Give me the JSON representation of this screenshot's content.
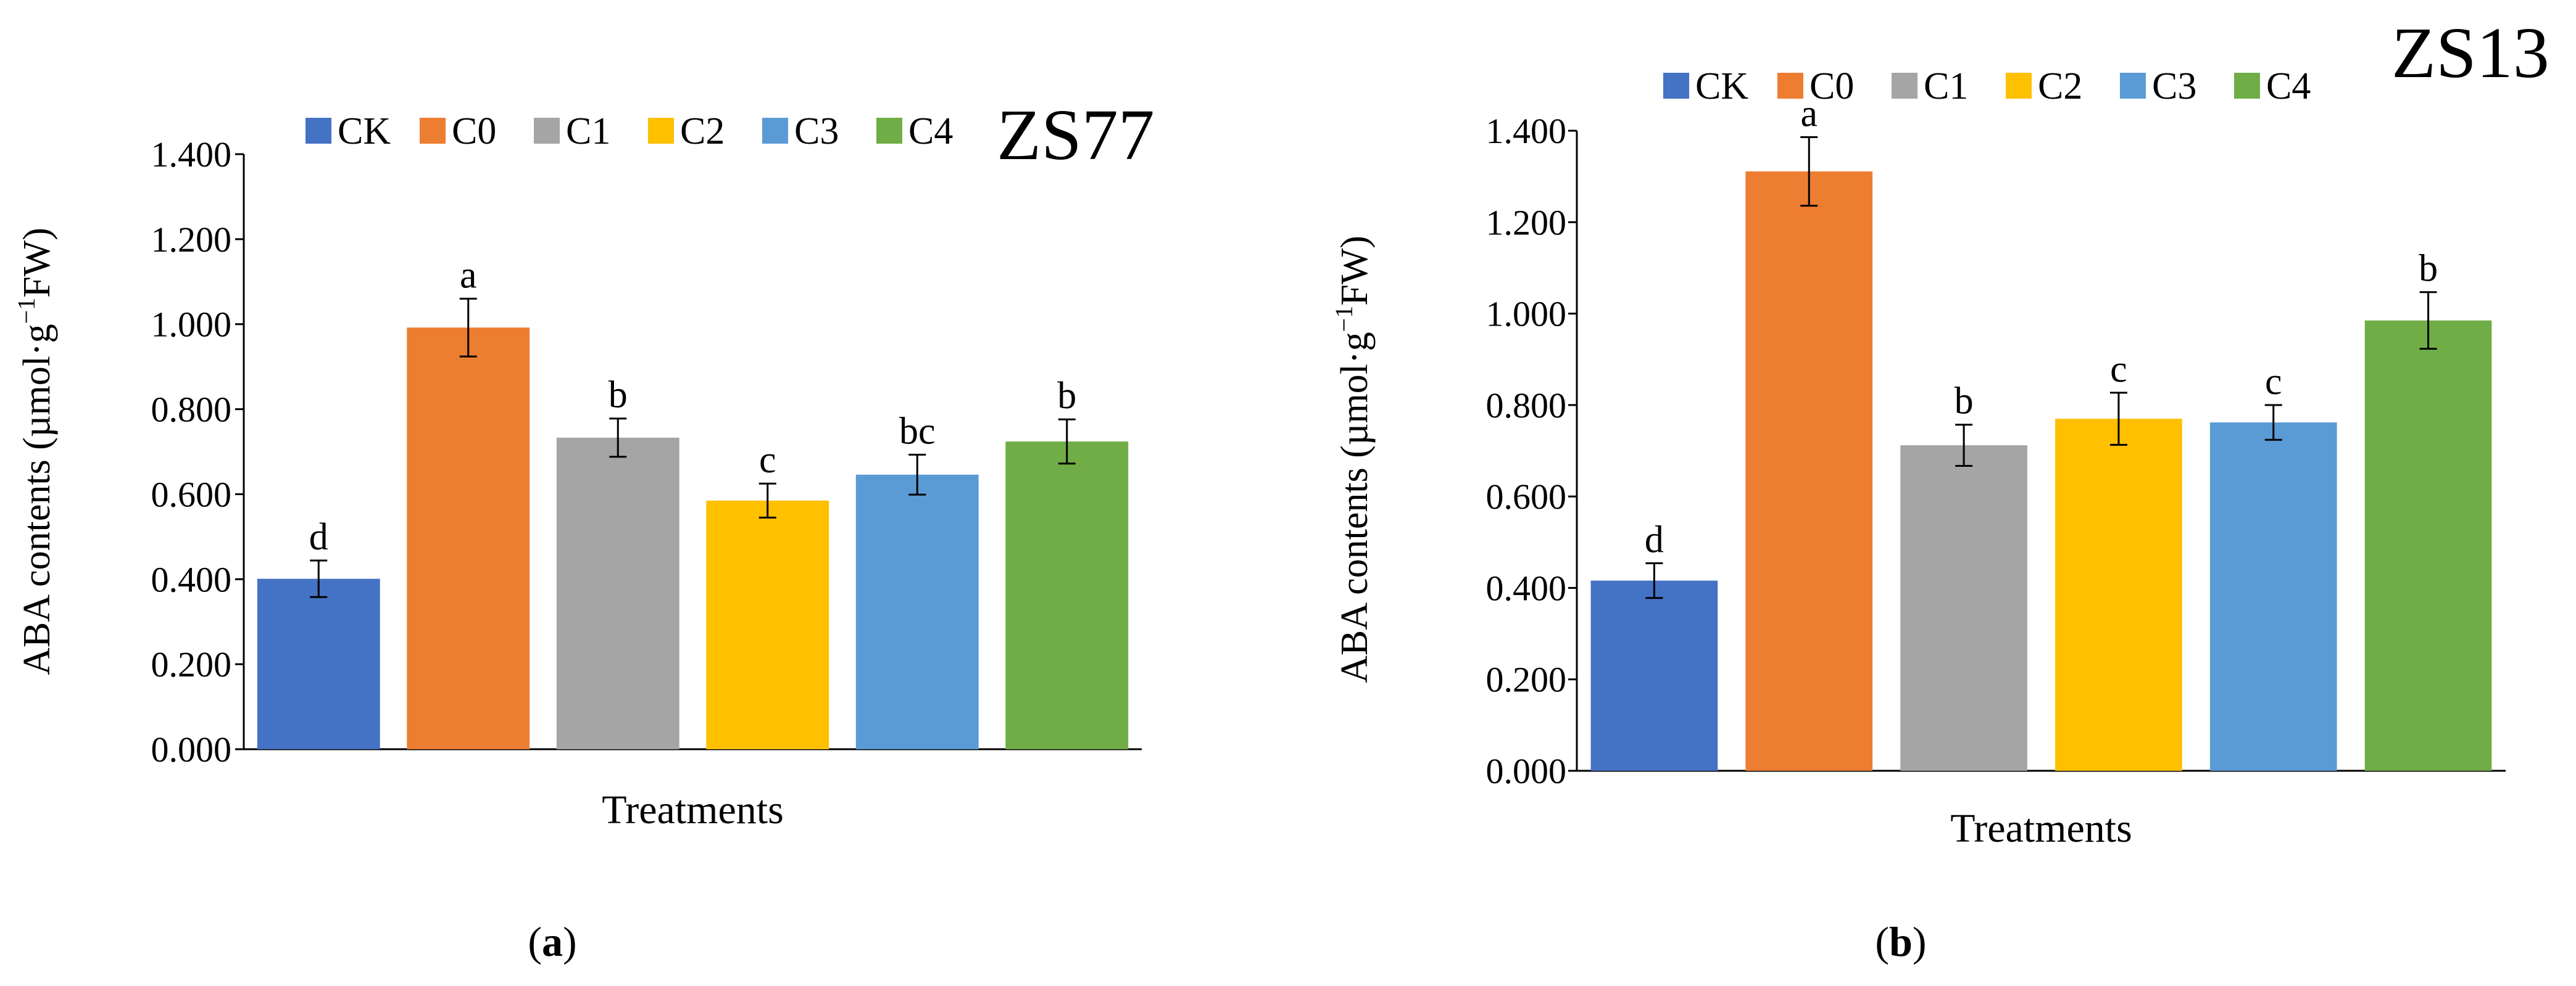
{
  "chart_data": [
    {
      "type": "bar",
      "panel": "a",
      "title": "ZS77",
      "categories": [
        "CK",
        "C0",
        "C1",
        "C2",
        "C3",
        "C4"
      ],
      "values": [
        0.401,
        0.992,
        0.733,
        0.585,
        0.646,
        0.724
      ],
      "errors": [
        0.043,
        0.068,
        0.045,
        0.04,
        0.047,
        0.052
      ],
      "significance": [
        "d",
        "a",
        "b",
        "c",
        "bc",
        "b"
      ],
      "colors": [
        "#4472C4",
        "#ED7D31",
        "#A5A5A5",
        "#FFC000",
        "#5B9BD5",
        "#70AD47"
      ],
      "xlabel": "Treatments",
      "ylabel": {
        "main": "ABA contents (µmol·g",
        "sup": "−1",
        "tail": "FW)"
      },
      "ylim": [
        0,
        1.4
      ],
      "yticks": [
        "0.000",
        "0.200",
        "0.400",
        "0.600",
        "0.800",
        "1.000",
        "1.200",
        "1.400"
      ],
      "legend": [
        "CK",
        "C0",
        "C1",
        "C2",
        "C3",
        "C4"
      ],
      "grid": false,
      "caption": {
        "open": "(",
        "letter": "a",
        "close": ")"
      }
    },
    {
      "type": "bar",
      "panel": "b",
      "title": "ZS13",
      "categories": [
        "CK",
        "C0",
        "C1",
        "C2",
        "C3",
        "C4"
      ],
      "values": [
        0.416,
        1.311,
        0.712,
        0.77,
        0.762,
        0.985
      ],
      "errors": [
        0.038,
        0.075,
        0.045,
        0.057,
        0.038,
        0.062
      ],
      "significance": [
        "d",
        "a",
        "b",
        "c",
        "c",
        "b"
      ],
      "colors": [
        "#4472C4",
        "#ED7D31",
        "#A5A5A5",
        "#FFC000",
        "#5B9BD5",
        "#70AD47"
      ],
      "xlabel": "Treatments",
      "ylabel": {
        "main": "ABA contents (µmol·g",
        "sup": "−1",
        "tail": "FW)"
      },
      "ylim": [
        0,
        1.4
      ],
      "yticks": [
        "0.000",
        "0.200",
        "0.400",
        "0.600",
        "0.800",
        "1.000",
        "1.200",
        "1.400"
      ],
      "legend": [
        "CK",
        "C0",
        "C1",
        "C2",
        "C3",
        "C4"
      ],
      "grid": false,
      "caption": {
        "open": "(",
        "letter": "b",
        "close": ")"
      }
    }
  ]
}
